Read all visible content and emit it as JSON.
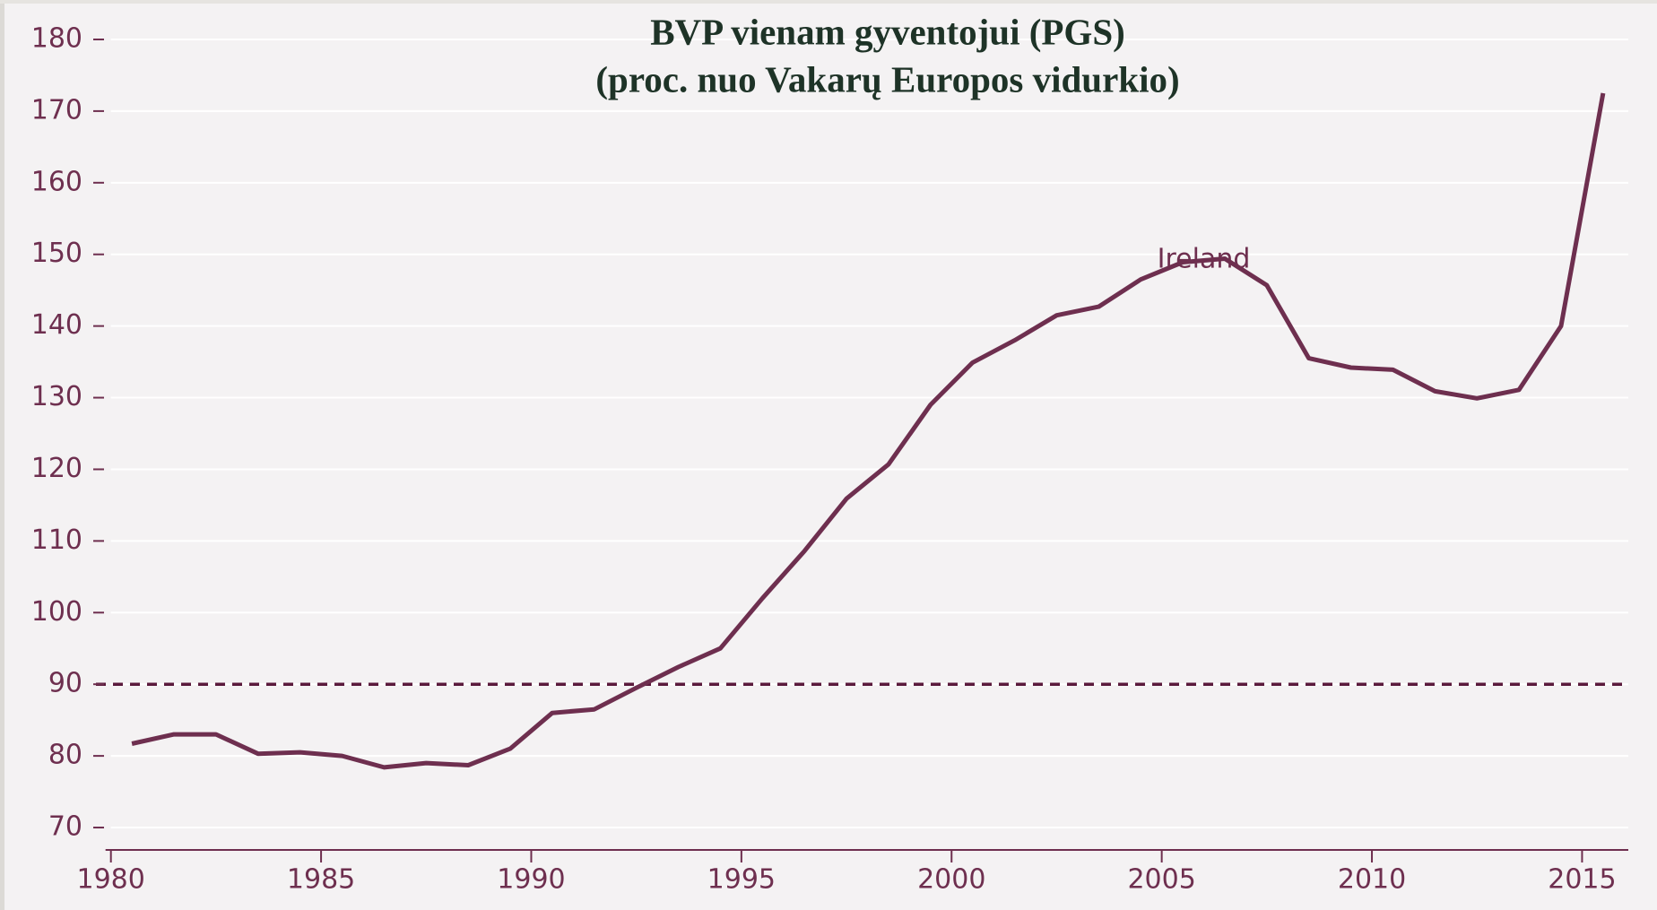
{
  "chart_data": {
    "type": "line",
    "title": "BVP vienam gyventojui (PGS)",
    "subtitle": "(proc. nuo Vakarų Europos vidurkio)",
    "x": [
      1980.5,
      1981.5,
      1982.5,
      1983.5,
      1984.5,
      1985.5,
      1986.5,
      1987.5,
      1988.5,
      1989.5,
      1990.5,
      1991.5,
      1992.5,
      1993.5,
      1994.5,
      1995.5,
      1996.5,
      1997.5,
      1998.5,
      1999.5,
      2000.5,
      2001.5,
      2002.5,
      2003.5,
      2004.5,
      2005.5,
      2006.5,
      2007.5,
      2008.5,
      2009.5,
      2010.5,
      2011.5,
      2012.5,
      2013.5,
      2014.5,
      2015.5
    ],
    "series": [
      {
        "name": "Ireland",
        "color": "#6e2f4f",
        "values": [
          81.7,
          83,
          83,
          80.3,
          80.5,
          80,
          78.4,
          79,
          78.7,
          81,
          86,
          86.5,
          89.5,
          92.4,
          95,
          102,
          108.6,
          115.9,
          120.7,
          129,
          134.9,
          138,
          141.5,
          142.7,
          146.5,
          148.9,
          149.4,
          145.7,
          135.5,
          134.2,
          133.9,
          130.9,
          129.9,
          131.1,
          140,
          172.5
        ]
      }
    ],
    "reference_line": {
      "value": 90,
      "color": "#5a1a3c"
    },
    "xlim": [
      1979.9,
      2016.1
    ],
    "xticks": [
      1980,
      1985,
      1990,
      1995,
      2000,
      2005,
      2010,
      2015
    ],
    "ylim": [
      67.5,
      181
    ],
    "yticks": [
      70,
      80,
      90,
      100,
      110,
      120,
      130,
      140,
      150,
      160,
      170,
      180
    ],
    "grid": true
  }
}
